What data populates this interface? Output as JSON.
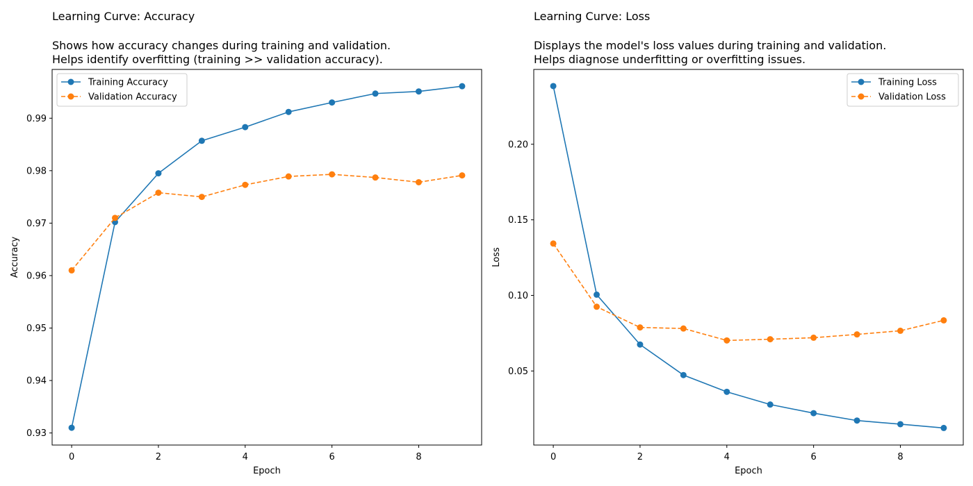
{
  "chart_data": [
    {
      "type": "line",
      "title": "Learning Curve: Accuracy",
      "subtitle": [
        "Shows how accuracy changes during training and validation.",
        "Helps identify overfitting (training >> validation accuracy)."
      ],
      "xlabel": "Epoch",
      "ylabel": "Accuracy",
      "x": [
        0,
        1,
        2,
        3,
        4,
        5,
        6,
        7,
        8,
        9
      ],
      "xlim": [
        -0.45,
        9.45
      ],
      "ylim": [
        0.9277,
        0.9993
      ],
      "xticks": [
        0,
        2,
        4,
        6,
        8
      ],
      "yticks": [
        0.93,
        0.94,
        0.95,
        0.96,
        0.97,
        0.98,
        0.99
      ],
      "xtick_labels": [
        "0",
        "2",
        "4",
        "6",
        "8"
      ],
      "ytick_labels": [
        "0.93",
        "0.94",
        "0.95",
        "0.96",
        "0.97",
        "0.98",
        "0.99"
      ],
      "grid": false,
      "legend_position": "upper-left",
      "series": [
        {
          "name": "Training Accuracy",
          "color": "#1f77b4",
          "line_style": "solid",
          "marker": "circle",
          "values": [
            0.931,
            0.9702,
            0.9795,
            0.9857,
            0.9883,
            0.9912,
            0.993,
            0.9947,
            0.9951,
            0.9961
          ]
        },
        {
          "name": "Validation Accuracy",
          "color": "#ff7f0e",
          "line_style": "dashed",
          "marker": "circle",
          "values": [
            0.961,
            0.971,
            0.9758,
            0.975,
            0.9773,
            0.9789,
            0.9793,
            0.9787,
            0.9778,
            0.9791
          ]
        }
      ]
    },
    {
      "type": "line",
      "title": "Learning Curve: Loss",
      "subtitle": [
        "Displays the model's loss values during training and validation.",
        "Helps diagnose underfitting or overfitting issues."
      ],
      "xlabel": "Epoch",
      "ylabel": "Loss",
      "x": [
        0,
        1,
        2,
        3,
        4,
        5,
        6,
        7,
        8,
        9
      ],
      "xlim": [
        -0.45,
        9.45
      ],
      "ylim": [
        0.001,
        0.2495
      ],
      "xticks": [
        0,
        2,
        4,
        6,
        8
      ],
      "yticks": [
        0.05,
        0.1,
        0.15,
        0.2
      ],
      "xtick_labels": [
        "0",
        "2",
        "4",
        "6",
        "8"
      ],
      "ytick_labels": [
        "0.05",
        "0.10",
        "0.15",
        "0.20"
      ],
      "grid": false,
      "legend_position": "upper-right",
      "series": [
        {
          "name": "Training Loss",
          "color": "#1f77b4",
          "line_style": "solid",
          "marker": "circle",
          "values": [
            0.2385,
            0.1005,
            0.0675,
            0.0473,
            0.0362,
            0.0278,
            0.0221,
            0.0172,
            0.0148,
            0.0123
          ]
        },
        {
          "name": "Validation Loss",
          "color": "#ff7f0e",
          "line_style": "dashed",
          "marker": "circle",
          "values": [
            0.1343,
            0.0925,
            0.0788,
            0.0781,
            0.0702,
            0.071,
            0.072,
            0.0742,
            0.0766,
            0.0835
          ]
        }
      ]
    }
  ]
}
